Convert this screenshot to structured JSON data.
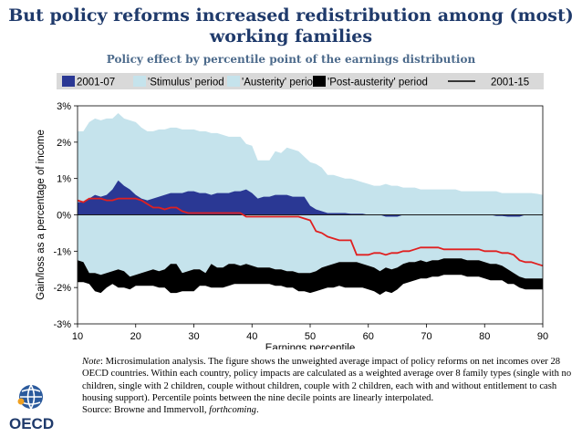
{
  "title": "But policy reforms increased redistribution among (most) working families",
  "chart_data": {
    "type": "area",
    "title": "Policy effect by percentile point of the earnings distribution",
    "xlabel": "Earnings percentile",
    "ylabel": "Gain/loss as a percentage of income",
    "xlim": [
      10,
      90
    ],
    "ylim": [
      -3,
      3
    ],
    "x_ticks": [
      "10",
      "20",
      "30",
      "40",
      "50",
      "60",
      "70",
      "80",
      "90"
    ],
    "y_ticks": [
      "3%",
      "2%",
      "1%",
      "0%",
      "-1%",
      "-2%",
      "-3%"
    ],
    "legend": [
      "2001-07",
      "'Stimulus' period",
      "'Austerity' period",
      "'Post-austerity' period",
      "2001-15"
    ],
    "legend_position": "top",
    "x": [
      10,
      11,
      12,
      13,
      14,
      15,
      16,
      17,
      18,
      19,
      20,
      21,
      22,
      23,
      24,
      25,
      26,
      27,
      28,
      29,
      30,
      31,
      32,
      33,
      34,
      35,
      36,
      37,
      38,
      39,
      40,
      41,
      42,
      43,
      44,
      45,
      46,
      47,
      48,
      49,
      50,
      51,
      52,
      53,
      54,
      55,
      56,
      57,
      58,
      59,
      60,
      61,
      62,
      63,
      64,
      65,
      66,
      67,
      68,
      69,
      70,
      71,
      72,
      73,
      74,
      75,
      76,
      77,
      78,
      79,
      80,
      81,
      82,
      83,
      84,
      85,
      86,
      87,
      88,
      89,
      90
    ],
    "series": [
      {
        "name": "2001-07",
        "color": "#2a3894",
        "values": [
          0.35,
          0.35,
          0.45,
          0.55,
          0.5,
          0.55,
          0.7,
          0.95,
          0.8,
          0.7,
          0.55,
          0.45,
          0.4,
          0.45,
          0.5,
          0.55,
          0.6,
          0.6,
          0.6,
          0.65,
          0.65,
          0.6,
          0.6,
          0.55,
          0.6,
          0.6,
          0.6,
          0.65,
          0.65,
          0.7,
          0.6,
          0.45,
          0.5,
          0.5,
          0.55,
          0.55,
          0.55,
          0.5,
          0.5,
          0.5,
          0.25,
          0.15,
          0.1,
          0.05,
          0.05,
          0.05,
          0.05,
          0.03,
          0.03,
          0.03,
          0,
          0,
          0,
          -0.05,
          -0.05,
          -0.05,
          0,
          0,
          0,
          0,
          0,
          0,
          0,
          0,
          0,
          0,
          0,
          0,
          0,
          0,
          0,
          0,
          -0.03,
          -0.03,
          -0.05,
          -0.05,
          -0.05,
          0,
          0,
          0,
          0
        ]
      },
      {
        "name": "'Stimulus' period",
        "color": "#c5e3ec",
        "values": [
          2.3,
          2.3,
          2.55,
          2.65,
          2.6,
          2.65,
          2.65,
          2.8,
          2.65,
          2.6,
          2.55,
          2.4,
          2.3,
          2.3,
          2.35,
          2.35,
          2.4,
          2.4,
          2.35,
          2.35,
          2.35,
          2.3,
          2.3,
          2.25,
          2.25,
          2.2,
          2.15,
          2.15,
          2.15,
          1.95,
          1.9,
          1.5,
          1.5,
          1.5,
          1.75,
          1.7,
          1.85,
          1.8,
          1.75,
          1.6,
          1.45,
          1.4,
          1.3,
          1.1,
          1.1,
          1.05,
          1,
          1,
          0.95,
          0.9,
          0.85,
          0.8,
          0.8,
          0.85,
          0.8,
          0.8,
          0.75,
          0.75,
          0.75,
          0.7,
          0.7,
          0.7,
          0.7,
          0.7,
          0.7,
          0.7,
          0.65,
          0.65,
          0.65,
          0.65,
          0.65,
          0.65,
          0.65,
          0.6,
          0.6,
          0.6,
          0.6,
          0.6,
          0.6,
          0.58,
          0.55
        ]
      },
      {
        "name": "'Austerity' period",
        "color": "#c5e3ec",
        "values": [
          -1.25,
          -1.3,
          -1.6,
          -1.6,
          -1.65,
          -1.6,
          -1.55,
          -1.5,
          -1.55,
          -1.7,
          -1.65,
          -1.6,
          -1.55,
          -1.5,
          -1.55,
          -1.5,
          -1.35,
          -1.35,
          -1.6,
          -1.55,
          -1.5,
          -1.5,
          -1.6,
          -1.35,
          -1.45,
          -1.45,
          -1.35,
          -1.35,
          -1.4,
          -1.35,
          -1.4,
          -1.45,
          -1.45,
          -1.45,
          -1.5,
          -1.5,
          -1.55,
          -1.55,
          -1.6,
          -1.6,
          -1.6,
          -1.55,
          -1.45,
          -1.4,
          -1.35,
          -1.3,
          -1.3,
          -1.3,
          -1.3,
          -1.35,
          -1.4,
          -1.45,
          -1.55,
          -1.45,
          -1.5,
          -1.45,
          -1.35,
          -1.3,
          -1.3,
          -1.25,
          -1.3,
          -1.25,
          -1.25,
          -1.2,
          -1.2,
          -1.2,
          -1.2,
          -1.25,
          -1.25,
          -1.25,
          -1.3,
          -1.35,
          -1.35,
          -1.4,
          -1.5,
          -1.6,
          -1.7,
          -1.75,
          -1.75,
          -1.75,
          -1.75
        ]
      },
      {
        "name": "'Post-austerity' period",
        "color": "#000000",
        "values": [
          -0.6,
          -0.55,
          -0.3,
          -0.5,
          -0.5,
          -0.4,
          -0.35,
          -0.5,
          -0.45,
          -0.35,
          -0.3,
          -0.35,
          -0.4,
          -0.45,
          -0.45,
          -0.5,
          -0.8,
          -0.8,
          -0.5,
          -0.55,
          -0.6,
          -0.45,
          -0.35,
          -0.65,
          -0.55,
          -0.55,
          -0.6,
          -0.55,
          -0.5,
          -0.55,
          -0.5,
          -0.45,
          -0.45,
          -0.45,
          -0.45,
          -0.45,
          -0.45,
          -0.45,
          -0.5,
          -0.5,
          -0.55,
          -0.55,
          -0.6,
          -0.6,
          -0.65,
          -0.65,
          -0.7,
          -0.7,
          -0.7,
          -0.65,
          -0.65,
          -0.65,
          -0.65,
          -0.65,
          -0.65,
          -0.6,
          -0.55,
          -0.55,
          -0.5,
          -0.5,
          -0.45,
          -0.45,
          -0.45,
          -0.45,
          -0.45,
          -0.45,
          -0.45,
          -0.45,
          -0.45,
          -0.45,
          -0.45,
          -0.45,
          -0.45,
          -0.4,
          -0.4,
          -0.3,
          -0.3,
          -0.3,
          -0.3,
          -0.3,
          -0.3
        ]
      },
      {
        "name": "2001-15",
        "color": "#e02020",
        "values": [
          0.4,
          0.35,
          0.45,
          0.45,
          0.45,
          0.4,
          0.4,
          0.45,
          0.45,
          0.45,
          0.45,
          0.4,
          0.3,
          0.2,
          0.2,
          0.15,
          0.2,
          0.2,
          0.1,
          0.05,
          0.05,
          0.05,
          0.05,
          0.05,
          0.05,
          0.05,
          0.05,
          0.05,
          0.05,
          -0.05,
          -0.05,
          -0.05,
          -0.05,
          -0.05,
          -0.05,
          -0.05,
          -0.05,
          -0.05,
          -0.05,
          -0.1,
          -0.15,
          -0.45,
          -0.5,
          -0.6,
          -0.65,
          -0.7,
          -0.7,
          -0.7,
          -1.1,
          -1.1,
          -1.1,
          -1.05,
          -1.05,
          -1.1,
          -1.05,
          -1.05,
          -1.0,
          -1.0,
          -0.95,
          -0.9,
          -0.9,
          -0.9,
          -0.9,
          -0.95,
          -0.95,
          -0.95,
          -0.95,
          -0.95,
          -0.95,
          -0.95,
          -1.0,
          -1.0,
          -1.0,
          -1.05,
          -1.05,
          -1.1,
          -1.25,
          -1.3,
          -1.3,
          -1.35,
          -1.4
        ]
      }
    ]
  },
  "note": {
    "label": "Note",
    "text": ": Microsimulation analysis. The figure shows the unweighted average impact of policy reforms on net incomes over 28 OECD countries. Within each country, policy impacts are calculated as a weighted average over 8 family types (single with no children, single with 2 children, couple without children, couple with 2 children, each with and without entitlement to cash housing support). Percentile points between the nine decile points are linearly interpolated.",
    "source_prefix": "Source: Browne and Immervoll, ",
    "source_italic": "forthcoming",
    "source_suffix": "."
  },
  "logo": {
    "text": "OECD",
    "icon": "oecd-globe-logo"
  },
  "colors": {
    "title": "#1f3a6b",
    "subtitle": "#4d6b8c",
    "legend_bg": "#d9d9d9"
  }
}
